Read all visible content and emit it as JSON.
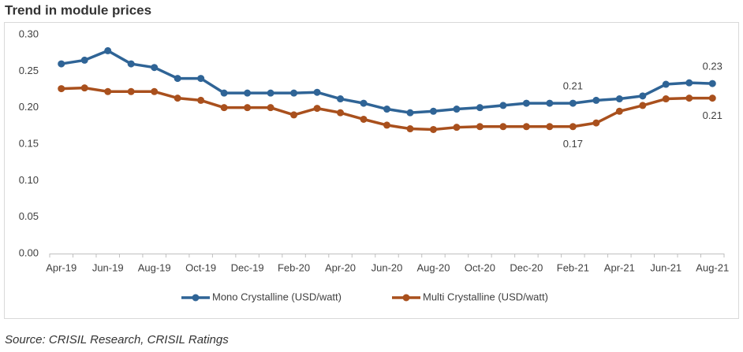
{
  "chart_data": {
    "type": "line",
    "title": "Trend in module prices",
    "source": "Source: CRISIL Research, CRISIL Ratings",
    "categories": [
      "Apr-19",
      null,
      "Jun-19",
      null,
      "Aug-19",
      null,
      "Oct-19",
      null,
      "Dec-19",
      null,
      "Feb-20",
      null,
      "Apr-20",
      null,
      "Jun-20",
      null,
      "Aug-20",
      null,
      "Oct-20",
      null,
      "Dec-20",
      null,
      "Feb-21",
      null,
      "Apr-21",
      null,
      "Jun-21",
      null,
      "Aug-21"
    ],
    "series": [
      {
        "name": "Mono Crystalline (USD/watt)",
        "color": "#2f6496",
        "values": [
          0.26,
          0.265,
          0.278,
          0.26,
          0.255,
          0.24,
          0.24,
          0.22,
          0.22,
          0.22,
          0.22,
          0.221,
          0.212,
          0.206,
          0.198,
          0.193,
          0.195,
          0.198,
          0.2,
          0.203,
          0.206,
          0.206,
          0.206,
          0.21,
          0.212,
          0.216,
          0.232,
          0.234,
          0.233
        ],
        "value_labels": [
          null,
          null,
          null,
          null,
          null,
          null,
          null,
          null,
          null,
          null,
          null,
          null,
          null,
          null,
          null,
          null,
          null,
          null,
          null,
          null,
          null,
          null,
          "0.21",
          null,
          null,
          null,
          null,
          null,
          "0.23"
        ]
      },
      {
        "name": "Multi Crystalline (USD/watt)",
        "color": "#a9501d",
        "values": [
          0.226,
          0.227,
          0.222,
          0.222,
          0.222,
          0.213,
          0.21,
          0.2,
          0.2,
          0.2,
          0.19,
          0.199,
          0.193,
          0.184,
          0.176,
          0.171,
          0.17,
          0.173,
          0.174,
          0.174,
          0.174,
          0.174,
          0.174,
          0.179,
          0.195,
          0.203,
          0.212,
          0.213,
          0.213
        ],
        "value_labels": [
          null,
          null,
          null,
          null,
          null,
          null,
          null,
          null,
          null,
          null,
          null,
          null,
          null,
          null,
          null,
          null,
          null,
          null,
          null,
          null,
          null,
          null,
          "0.17",
          null,
          null,
          null,
          null,
          null,
          "0.21"
        ]
      }
    ],
    "ylim": [
      0,
      0.3
    ],
    "yticks": [
      {
        "value": 0,
        "label": "0.00"
      },
      {
        "value": 0.05,
        "label": "0.05"
      },
      {
        "value": 0.1,
        "label": "0.10"
      },
      {
        "value": 0.15,
        "label": "0.15"
      },
      {
        "value": 0.2,
        "label": "0.20"
      },
      {
        "value": 0.25,
        "label": "0.25"
      },
      {
        "value": 0.3,
        "label": "0.30"
      }
    ],
    "grid": false,
    "legend": "bottom"
  }
}
